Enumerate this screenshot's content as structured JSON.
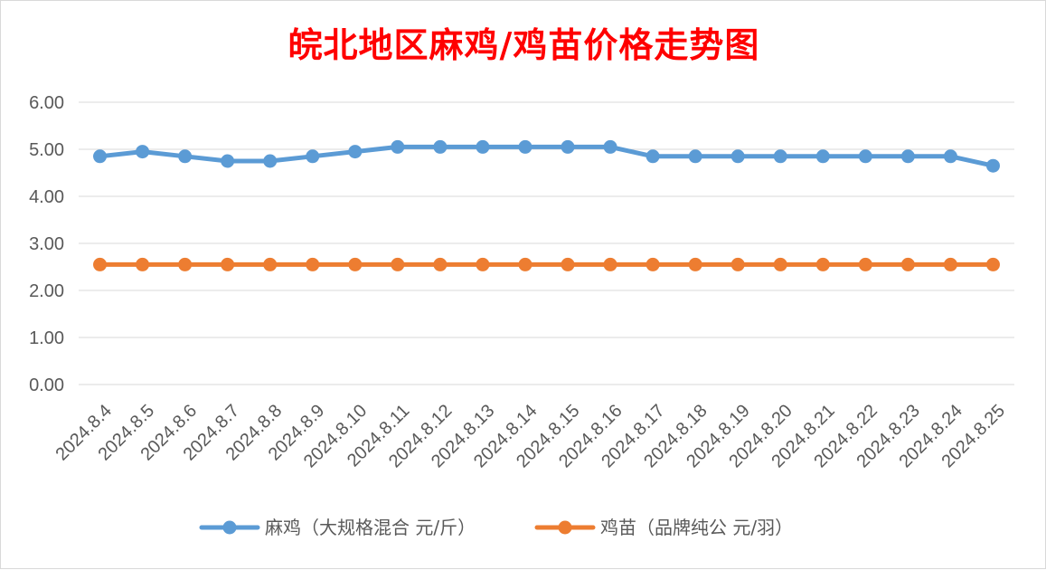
{
  "chart_data": {
    "type": "line",
    "title": "皖北地区麻鸡/鸡苗价格走势图",
    "categories": [
      "2024.8.4",
      "2024.8.5",
      "2024.8.6",
      "2024.8.7",
      "2024.8.8",
      "2024.8.9",
      "2024.8.10",
      "2024.8.11",
      "2024.8.12",
      "2024.8.13",
      "2024.8.14",
      "2024.8.15",
      "2024.8.16",
      "2024.8.17",
      "2024.8.18",
      "2024.8.19",
      "2024.8.20",
      "2024.8.21",
      "2024.8.22",
      "2024.8.23",
      "2024.8.24",
      "2024.8.25"
    ],
    "series": [
      {
        "name": "麻鸡（大规格混合 元/斤）",
        "color": "#5b9bd5",
        "values": [
          4.85,
          4.95,
          4.85,
          4.75,
          4.75,
          4.85,
          4.95,
          5.05,
          5.05,
          5.05,
          5.05,
          5.05,
          5.05,
          4.85,
          4.85,
          4.85,
          4.85,
          4.85,
          4.85,
          4.85,
          4.85,
          4.65
        ]
      },
      {
        "name": "鸡苗（品牌纯公 元/羽）",
        "color": "#ed7d31",
        "values": [
          2.55,
          2.55,
          2.55,
          2.55,
          2.55,
          2.55,
          2.55,
          2.55,
          2.55,
          2.55,
          2.55,
          2.55,
          2.55,
          2.55,
          2.55,
          2.55,
          2.55,
          2.55,
          2.55,
          2.55,
          2.55,
          2.55
        ]
      }
    ],
    "y_ticks": [
      "0.00",
      "1.00",
      "2.00",
      "3.00",
      "4.00",
      "5.00",
      "6.00"
    ],
    "ylim": [
      0,
      6
    ],
    "grid": true,
    "legend_position": "bottom",
    "title_color": "#ff0000",
    "grid_color": "#d9d9d9"
  }
}
